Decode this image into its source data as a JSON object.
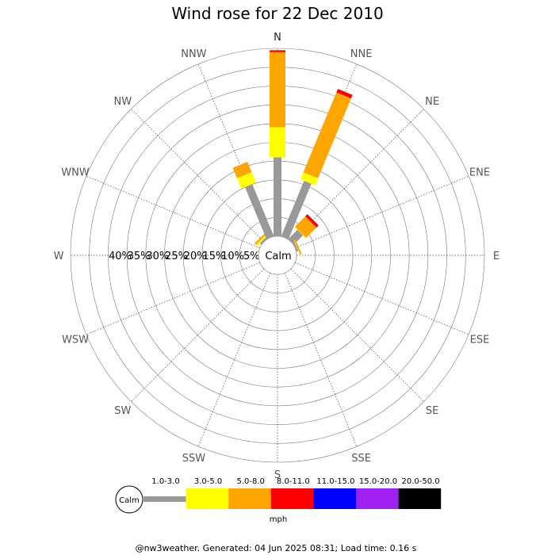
{
  "chart_data": {
    "type": "wind-rose",
    "title": "Wind rose for 22 Dec 2010",
    "directions": [
      "N",
      "NNE",
      "NE",
      "ENE",
      "E",
      "ESE",
      "SE",
      "SSE",
      "S",
      "SSW",
      "SW",
      "WSW",
      "W",
      "WNW",
      "NW",
      "NNW"
    ],
    "radial_max_percent": 50,
    "radial_rings_percent": [
      5,
      10,
      15,
      20,
      25,
      30,
      35,
      40,
      45,
      50
    ],
    "ring_labels": [
      "40%",
      "35%",
      "30%",
      "25%",
      "20%",
      "15%",
      "10%",
      "5%"
    ],
    "calm_label": "Calm",
    "speed_bins": [
      {
        "label": "1.0-3.0",
        "color": "#999999"
      },
      {
        "label": "3.0-5.0",
        "color": "#ffff00"
      },
      {
        "label": "5.0-8.0",
        "color": "#ffa500"
      },
      {
        "label": "8.0-11.0",
        "color": "#ff0000"
      },
      {
        "label": "11.0-15.0",
        "color": "#0000ff"
      },
      {
        "label": "15.0-20.0",
        "color": "#a020f0"
      },
      {
        "label": "20.0-50.0",
        "color": "#000000"
      }
    ],
    "unit": "mph",
    "series": [
      {
        "direction": "N",
        "cumulative_percent": [
          21,
          29,
          49,
          49.5,
          49.5,
          49.5,
          49.5
        ]
      },
      {
        "direction": "NNE",
        "cumulative_percent": [
          16,
          18,
          41,
          42,
          42,
          42,
          42
        ]
      },
      {
        "direction": "NE",
        "cumulative_percent": [
          3.5,
          3.6,
          7.5,
          8.3,
          8.3,
          8.3,
          8.3
        ]
      },
      {
        "direction": "ENE",
        "cumulative_percent": [
          0.5,
          0.6,
          1.0,
          1.0,
          1.0,
          1.0,
          1.0
        ]
      },
      {
        "direction": "NW",
        "cumulative_percent": [
          0.5,
          1.0,
          1.5,
          1.5,
          1.5,
          1.5,
          1.5
        ]
      },
      {
        "direction": "NNW",
        "cumulative_percent": [
          15,
          18,
          21,
          21,
          21,
          21,
          21
        ]
      }
    ]
  },
  "footer": "@nw3weather. Generated: 04 Jun 2025 08:31; Load time: 0.16 s"
}
